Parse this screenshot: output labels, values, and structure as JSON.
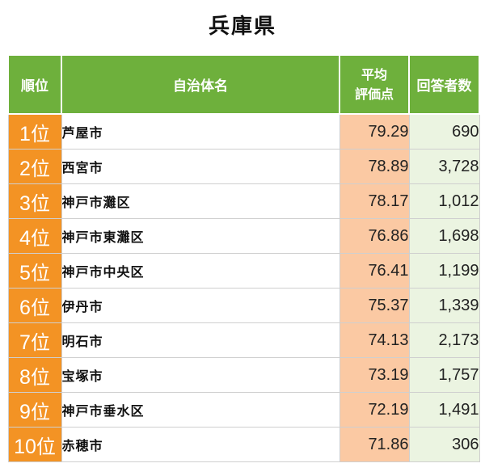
{
  "page_title": "兵庫県",
  "table": {
    "headers": {
      "rank": "順位",
      "name": "自治体名",
      "score_line1": "平均",
      "score_line2": "評価点",
      "count": "回答者数"
    },
    "rank_suffix": "位",
    "rows": [
      {
        "rank": "1",
        "name": "芦屋市",
        "score": "79.29",
        "count": "690"
      },
      {
        "rank": "2",
        "name": "西宮市",
        "score": "78.89",
        "count": "3,728"
      },
      {
        "rank": "3",
        "name": "神戸市灘区",
        "score": "78.17",
        "count": "1,012"
      },
      {
        "rank": "4",
        "name": "神戸市東灘区",
        "score": "76.86",
        "count": "1,698"
      },
      {
        "rank": "5",
        "name": "神戸市中央区",
        "score": "76.41",
        "count": "1,199"
      },
      {
        "rank": "6",
        "name": "伊丹市",
        "score": "75.37",
        "count": "1,339"
      },
      {
        "rank": "7",
        "name": "明石市",
        "score": "74.13",
        "count": "2,173"
      },
      {
        "rank": "8",
        "name": "宝塚市",
        "score": "73.19",
        "count": "1,757"
      },
      {
        "rank": "9",
        "name": "神戸市垂水区",
        "score": "72.19",
        "count": "1,491"
      },
      {
        "rank": "10",
        "name": "赤穂市",
        "score": "71.86",
        "count": "306"
      }
    ]
  },
  "colors": {
    "header_green": "#6eb03c",
    "rank_orange": "#f39324",
    "score_peach": "#fbc9a3",
    "count_light_green": "#ebf4e1"
  }
}
